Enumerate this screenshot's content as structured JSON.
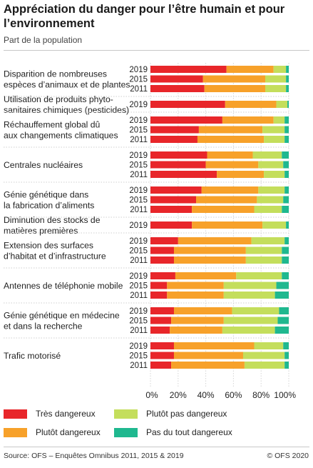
{
  "header": {
    "title": "Appréciation du danger pour l’être humain et pour l’environnement",
    "subtitle": "Part de la population"
  },
  "footer": {
    "source": "Source: OFS – Enquêtes Omnibus 2011, 2015 & 2019",
    "copyright": "© OFS 2020"
  },
  "colors": {
    "tres_dangereux": "#e8262a",
    "plutot_dangereux": "#f7a12a",
    "plutot_pas_dangereux": "#c4de5c",
    "pas_du_tout_dangereux": "#1fb88f"
  },
  "chart_data": {
    "type": "bar",
    "orientation": "horizontal",
    "stacked": true,
    "xlim": [
      0,
      100
    ],
    "xticks": [
      "0%",
      "20%",
      "40%",
      "60%",
      "80%",
      "100%"
    ],
    "grid": true,
    "legend_position": "bottom",
    "series_names": [
      "Très dangereux",
      "Plutôt dangereux",
      "Plutôt pas dangereux",
      "Pas du tout dangereux"
    ],
    "groups": [
      {
        "label": "Disparition de nombreuses espèces d’animaux et de plantes",
        "label_lines": [
          "Disparition de nombreuses",
          "espèces d’animaux et de plantes"
        ],
        "bars": [
          {
            "year": "2019",
            "values": [
              55,
              34,
              9,
              2
            ]
          },
          {
            "year": "2015",
            "values": [
              38,
              45,
              15,
              2
            ]
          },
          {
            "year": "2011",
            "values": [
              39,
              44,
              15,
              2
            ]
          }
        ]
      },
      {
        "label": "Utilisation de produits phytosanitaires chimiques (pesticides)",
        "label_lines": [
          "Utilisation de produits phyto-",
          "sanitaires chimiques (pesticides)"
        ],
        "bars": [
          {
            "year": "2019",
            "values": [
              54,
              37,
              8,
              1
            ]
          }
        ]
      },
      {
        "label": "Réchauffement global dû aux changements climatiques",
        "label_lines": [
          "Réchauffement global dû",
          "aux changements climatiques"
        ],
        "bars": [
          {
            "year": "2019",
            "values": [
              52,
              37,
              8,
              3
            ]
          },
          {
            "year": "2015",
            "values": [
              35,
              46,
              16,
              3
            ]
          },
          {
            "year": "2011",
            "values": [
              34,
              48,
              15,
              3
            ]
          }
        ]
      },
      {
        "label": "Centrales nucléaires",
        "label_lines": [
          "Centrales nucléaires"
        ],
        "bars": [
          {
            "year": "2019",
            "values": [
              41,
              33,
              21,
              5
            ]
          },
          {
            "year": "2015",
            "values": [
              40,
              38,
              18,
              4
            ]
          },
          {
            "year": "2011",
            "values": [
              48,
              34,
              15,
              3
            ]
          }
        ]
      },
      {
        "label": "Génie génétique dans la fabrication d’aliments",
        "label_lines": [
          "Génie génétique dans",
          "la fabrication d’aliments"
        ],
        "bars": [
          {
            "year": "2019",
            "values": [
              37,
              41,
              19,
              3
            ]
          },
          {
            "year": "2015",
            "values": [
              33,
              44,
              19,
              4
            ]
          },
          {
            "year": "2011",
            "values": [
              30,
              45,
              20,
              5
            ]
          }
        ]
      },
      {
        "label": "Diminution des stocks de matières premières",
        "label_lines": [
          "Diminution des stocks de",
          "matières premières"
        ],
        "bars": [
          {
            "year": "2019",
            "values": [
              30,
              51,
              17,
              2
            ]
          }
        ]
      },
      {
        "label": "Extension des surfaces d’habitat et d’infrastructure",
        "label_lines": [
          "Extension des surfaces",
          "d’habitat et d’infrastructure"
        ],
        "bars": [
          {
            "year": "2019",
            "values": [
              20,
              53,
              24,
              3
            ]
          },
          {
            "year": "2015",
            "values": [
              17,
              52,
              26,
              5
            ]
          },
          {
            "year": "2011",
            "values": [
              17,
              52,
              26,
              5
            ]
          }
        ]
      },
      {
        "label": "Antennes de téléphonie mobile",
        "label_lines": [
          "Antennes de téléphonie mobile"
        ],
        "bars": [
          {
            "year": "2019",
            "values": [
              18,
              44,
              33,
              5
            ]
          },
          {
            "year": "2015",
            "values": [
              12,
              41,
              38,
              9
            ]
          },
          {
            "year": "2011",
            "values": [
              12,
              41,
              37,
              10
            ]
          }
        ]
      },
      {
        "label": "Génie génétique en médecine et dans la recherche",
        "label_lines": [
          "Génie génétique en médecine",
          "et dans la recherche"
        ],
        "bars": [
          {
            "year": "2019",
            "values": [
              17,
              42,
              34,
              7
            ]
          },
          {
            "year": "2015",
            "values": [
              15,
              38,
              39,
              8
            ]
          },
          {
            "year": "2011",
            "values": [
              14,
              38,
              38,
              10
            ]
          }
        ]
      },
      {
        "label": "Trafic motorisé",
        "label_lines": [
          "Trafic motorisé"
        ],
        "bars": [
          {
            "year": "2019",
            "values": [
              17,
              58,
              21,
              4
            ]
          },
          {
            "year": "2015",
            "values": [
              17,
              50,
              30,
              3
            ]
          },
          {
            "year": "2011",
            "values": [
              15,
              53,
              29,
              3
            ]
          }
        ]
      }
    ]
  }
}
